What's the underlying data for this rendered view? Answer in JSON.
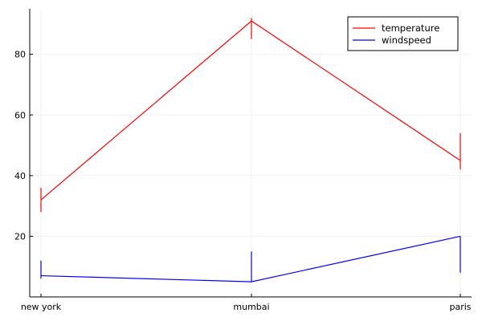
{
  "chart_data": {
    "type": "line",
    "categories": [
      "new york",
      "mumbai",
      "paris"
    ],
    "series": [
      {
        "name": "temperature",
        "color": "#ff0000",
        "values": [
          32,
          91,
          45
        ],
        "ranges": [
          [
            28,
            36
          ],
          [
            85,
            92
          ],
          [
            42,
            54
          ]
        ]
      },
      {
        "name": "windspeed",
        "color": "#0000ff",
        "values": [
          7,
          5,
          20
        ],
        "ranges": [
          [
            6,
            12
          ],
          [
            5,
            15
          ],
          [
            8,
            20
          ]
        ]
      }
    ],
    "xlabel": "",
    "ylabel": "",
    "title": "",
    "ylim": [
      0,
      95
    ],
    "yticks": [
      20,
      40,
      60,
      80
    ],
    "grid": true,
    "legend_position": "top-right"
  }
}
